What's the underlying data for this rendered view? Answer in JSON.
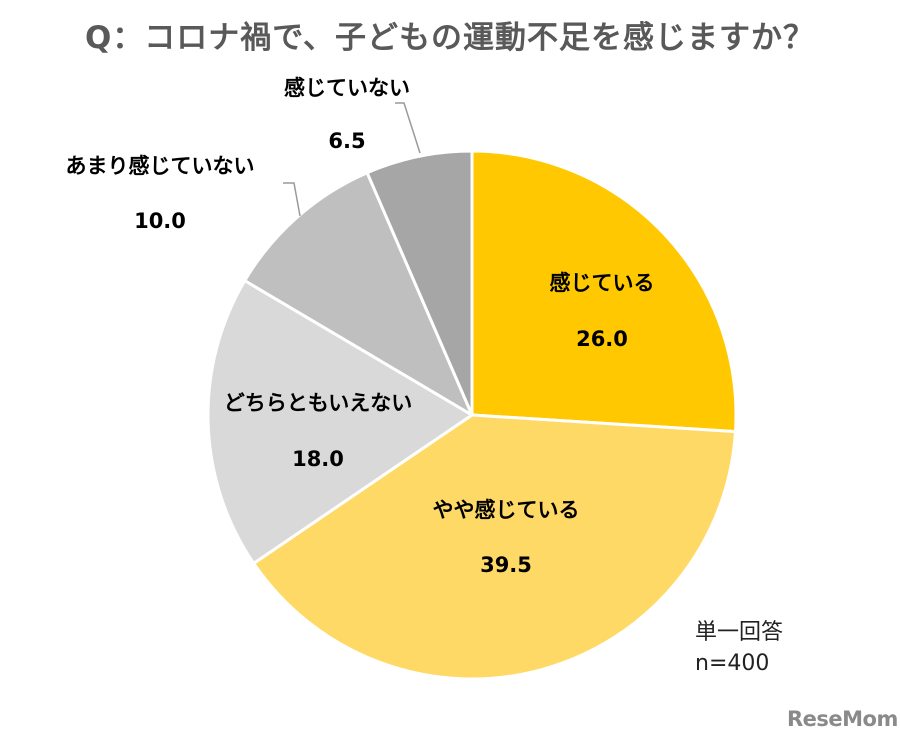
{
  "title": "Q：コロナ禍で、子どもの運動不足を感じますか？",
  "note": {
    "line1": "単一回答",
    "line2": "n=400"
  },
  "logo": "ReseMom",
  "chart_data": {
    "type": "pie",
    "title": "Q：コロナ禍で、子どもの運動不足を感じますか？",
    "start_angle_deg": 0,
    "direction": "clockwise",
    "slices": [
      {
        "label": "感じている",
        "value": 26.0,
        "value_text": "26.0",
        "color": "#FFC800"
      },
      {
        "label": "やや感じている",
        "value": 39.5,
        "value_text": "39.5",
        "color": "#FFD966"
      },
      {
        "label": "どちらともいえない",
        "value": 18.0,
        "value_text": "18.0",
        "color": "#D9D9D9"
      },
      {
        "label": "あまり感じていない",
        "value": 10.0,
        "value_text": "10.0",
        "color": "#BFBFBF"
      },
      {
        "label": "感じていない",
        "value": 6.5,
        "value_text": "6.5",
        "color": "#A6A6A6"
      }
    ]
  }
}
